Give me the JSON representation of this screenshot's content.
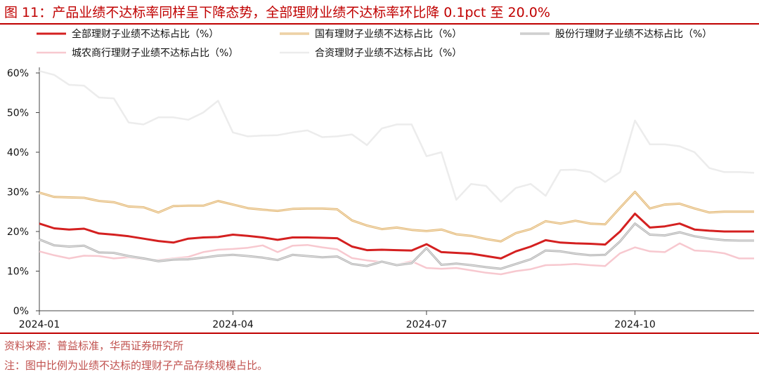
{
  "title": "图 11：产品业绩不达标率同样呈下降态势，全部理财业绩不达标率环比降 0.1pct 至 20.0%",
  "source": "资料来源：普益标准，华西证券研究所",
  "note": "注：图中比例为业绩不达标的理财子产品存续规模占比。",
  "chart_data": {
    "type": "line",
    "title": "",
    "xlabel": "",
    "ylabel": "",
    "ylim": [
      0,
      60
    ],
    "yticks": [
      "0%",
      "10%",
      "20%",
      "30%",
      "40%",
      "50%",
      "60%"
    ],
    "xticks": [
      "2024-01",
      "2024-04",
      "2024-07",
      "2024-10"
    ],
    "x": [
      "2024-01-01",
      "2024-01-08",
      "2024-01-15",
      "2024-01-22",
      "2024-01-29",
      "2024-02-05",
      "2024-02-12",
      "2024-02-19",
      "2024-02-26",
      "2024-03-04",
      "2024-03-11",
      "2024-03-18",
      "2024-03-25",
      "2024-04-01",
      "2024-04-08",
      "2024-04-15",
      "2024-04-22",
      "2024-04-29",
      "2024-05-06",
      "2024-05-13",
      "2024-05-20",
      "2024-05-27",
      "2024-06-03",
      "2024-06-10",
      "2024-06-17",
      "2024-06-24",
      "2024-07-01",
      "2024-07-08",
      "2024-07-15",
      "2024-07-22",
      "2024-07-29",
      "2024-08-05",
      "2024-08-12",
      "2024-08-19",
      "2024-08-26",
      "2024-09-02",
      "2024-09-09",
      "2024-09-16",
      "2024-09-23",
      "2024-09-30",
      "2024-10-07",
      "2024-10-14",
      "2024-10-21",
      "2024-10-28",
      "2024-11-04",
      "2024-11-11",
      "2024-11-18",
      "2024-11-25",
      "2024-12-02"
    ],
    "grid": false,
    "legend": "top",
    "series": [
      {
        "name": "全部理财子业绩不达标占比（%）",
        "color": "#d42020",
        "width": 3,
        "values": [
          22,
          20.8,
          20.5,
          20.7,
          19.5,
          19.2,
          18.8,
          18.2,
          17.6,
          17.2,
          18.2,
          18.5,
          18.6,
          19.2,
          18.9,
          18.5,
          17.9,
          18.5,
          18.5,
          18.4,
          18.3,
          16.2,
          15.3,
          15.4,
          15.3,
          15.2,
          16.8,
          14.8,
          14.6,
          14.4,
          13.8,
          13.2,
          15.0,
          16.2,
          17.8,
          17.2,
          17.0,
          16.9,
          16.7,
          20.0,
          24.5,
          21.0,
          21.3,
          22.0,
          20.5,
          20.2,
          20.0,
          20.0,
          20.0
        ]
      },
      {
        "name": "国有理财子业绩不达标占比（%）",
        "color": "#e2b46c",
        "width": 3,
        "values": [
          29.8,
          28.7,
          28.6,
          28.5,
          27.7,
          27.4,
          26.3,
          26.1,
          24.8,
          26.4,
          26.5,
          26.5,
          27.7,
          26.8,
          25.9,
          25.5,
          25.2,
          25.7,
          25.8,
          25.8,
          25.6,
          22.8,
          21.5,
          20.6,
          21.0,
          20.4,
          20.1,
          20.5,
          19.3,
          18.9,
          18.1,
          17.5,
          19.6,
          20.6,
          22.6,
          22.0,
          22.7,
          22.0,
          21.8,
          26.0,
          30.0,
          25.8,
          26.8,
          27.0,
          25.8,
          24.8,
          25.0,
          25.0,
          25.0
        ]
      },
      {
        "name": "股份行理财子业绩不达标占比（%）",
        "color": "#b0b0b0",
        "width": 3,
        "values": [
          18.0,
          16.5,
          16.2,
          16.4,
          14.7,
          14.6,
          13.8,
          13.2,
          12.5,
          12.9,
          13.0,
          13.4,
          13.9,
          14.1,
          13.8,
          13.4,
          12.8,
          14.1,
          13.8,
          13.5,
          13.7,
          11.8,
          11.3,
          12.4,
          11.5,
          12.0,
          15.8,
          11.6,
          11.9,
          11.5,
          11.0,
          10.6,
          11.8,
          13.0,
          15.2,
          15.0,
          14.4,
          14.0,
          14.1,
          17.5,
          22.0,
          19.2,
          19.0,
          19.8,
          18.8,
          18.2,
          17.8,
          17.7,
          17.7
        ]
      },
      {
        "name": "城农商行理财子业绩不达标占比（%）",
        "color": "#f7c8cf",
        "width": 2.5,
        "values": [
          15.0,
          14.0,
          13.2,
          13.9,
          13.8,
          13.2,
          13.5,
          13.0,
          12.8,
          13.2,
          13.6,
          14.8,
          15.4,
          15.6,
          15.9,
          16.5,
          14.8,
          16.4,
          16.6,
          16.0,
          15.5,
          13.3,
          12.7,
          12.3,
          11.6,
          12.5,
          10.8,
          10.6,
          10.8,
          10.2,
          9.6,
          9.2,
          10.0,
          10.5,
          11.5,
          11.6,
          11.8,
          11.5,
          11.3,
          14.5,
          16.0,
          15.0,
          14.8,
          17.0,
          15.2,
          15.0,
          14.5,
          13.2,
          13.2
        ]
      },
      {
        "name": "合资理财子业绩不达标占比（%）",
        "color": "#ececec",
        "width": 2.5,
        "values": [
          60.5,
          59.5,
          57.0,
          56.8,
          53.8,
          53.6,
          47.5,
          47.0,
          48.8,
          48.8,
          48.2,
          50.0,
          53.0,
          45.0,
          44.0,
          44.2,
          44.3,
          45.0,
          45.5,
          43.8,
          44.0,
          44.5,
          41.8,
          46.0,
          47.0,
          47.0,
          39.0,
          40.0,
          28.0,
          32.0,
          31.5,
          27.5,
          31.0,
          32.0,
          29.0,
          35.5,
          35.6,
          35.0,
          32.5,
          35.0,
          48.0,
          42.0,
          42.0,
          41.5,
          40.0,
          36.0,
          35.0,
          35.0,
          34.8
        ]
      }
    ]
  }
}
